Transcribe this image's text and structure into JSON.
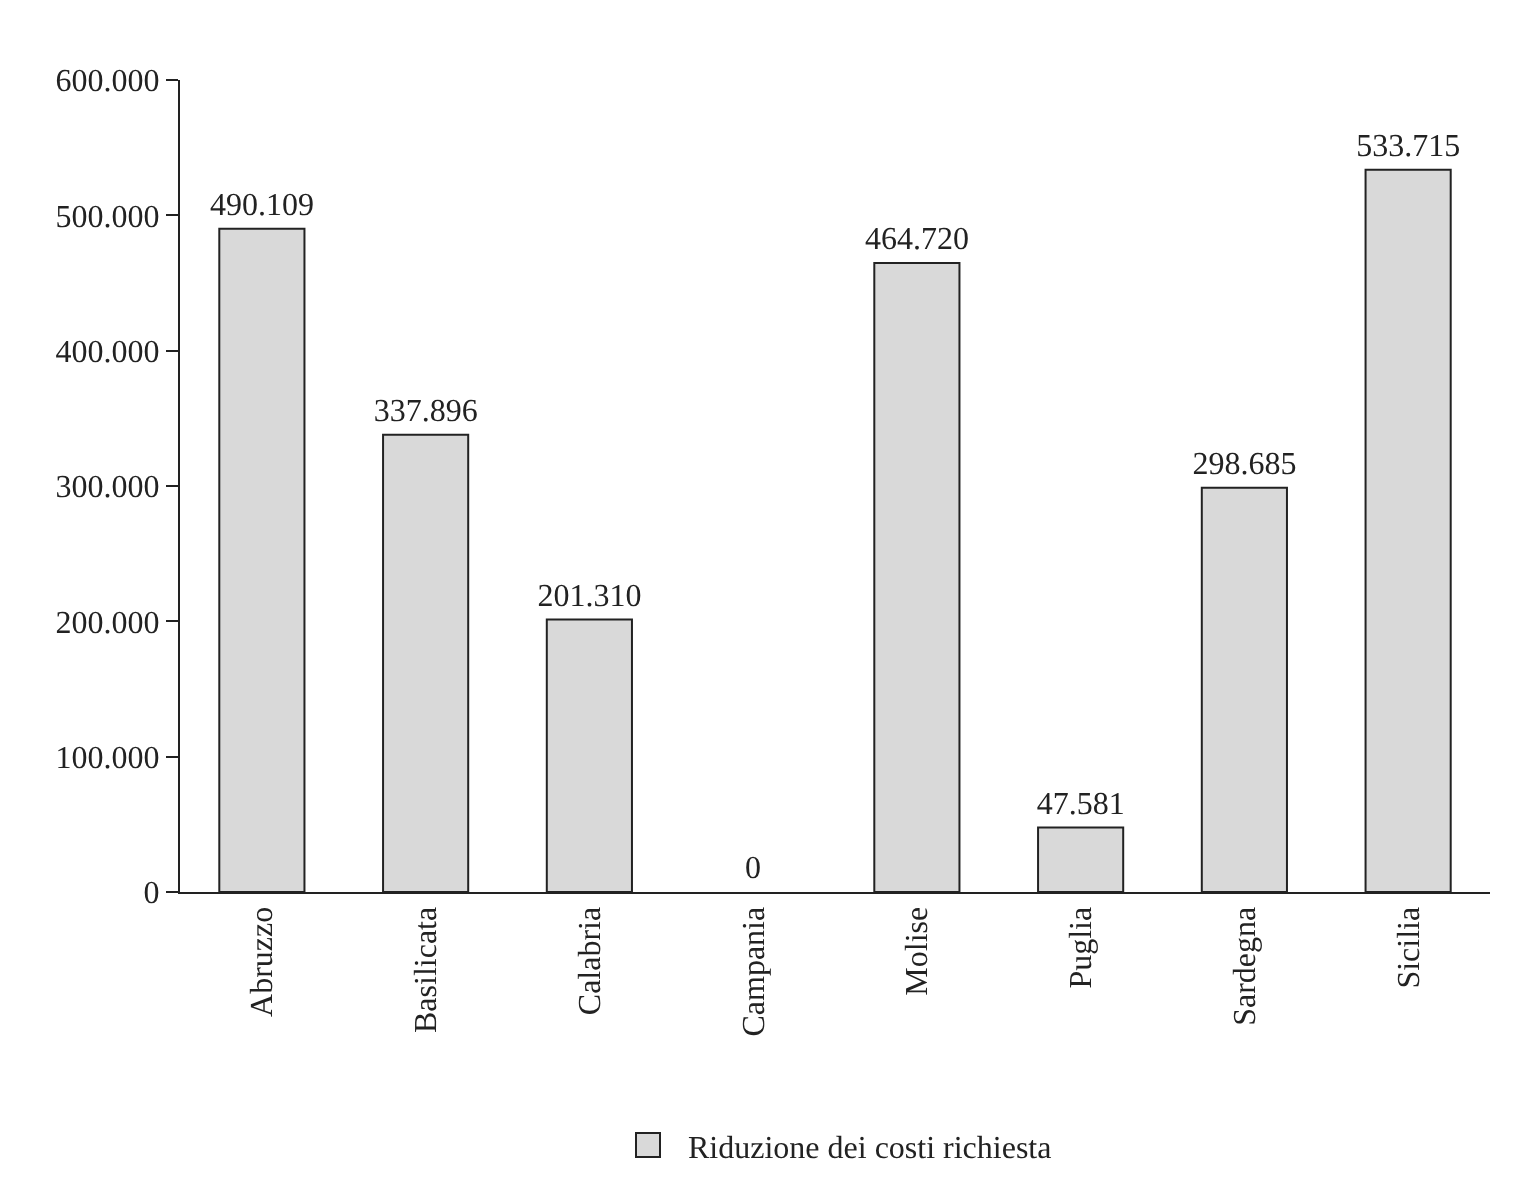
{
  "chart_data": {
    "type": "bar",
    "categories": [
      "Abruzzo",
      "Basilicata",
      "Calabria",
      "Campania",
      "Molise",
      "Puglia",
      "Sardegna",
      "Sicilia"
    ],
    "series": [
      {
        "name": "Riduzione dei costi richiesta",
        "color": "#d9d9d9",
        "values": [
          490109,
          337896,
          201310,
          0,
          464720,
          47581,
          298685,
          533715
        ],
        "value_labels": [
          "490.109",
          "337.896",
          "201.310",
          "0",
          "464.720",
          "47.581",
          "298.685",
          "533.715"
        ]
      }
    ],
    "ylim": [
      0,
      600000
    ],
    "yticks": [
      0,
      {
        "value": 100000,
        "label": "100.000"
      },
      {
        "value": 200000,
        "label": "200.000"
      },
      {
        "value": 300000,
        "label": "300.000"
      },
      {
        "value": 400000,
        "label": "400.000"
      },
      {
        "value": 500000,
        "label": "500.000"
      },
      {
        "value": 600000,
        "label": "600.000"
      }
    ],
    "grid": false,
    "legend": "bottom"
  }
}
